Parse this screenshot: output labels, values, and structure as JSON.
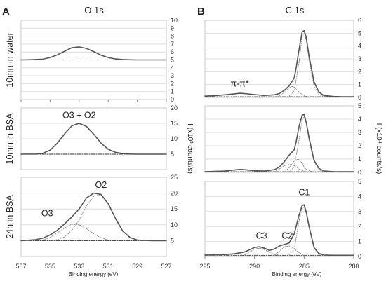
{
  "figure": {
    "panel_a_letter": "A",
    "panel_b_letter": "B",
    "panel_a_title": "O 1s",
    "panel_b_title": "C 1s",
    "xlabel": "Binding energy (eV)",
    "ylabel_a": "I (x10³ counts/s)",
    "ylabel_b": "I (x10⁴ counts/s)"
  },
  "chart_data": [
    {
      "type": "line",
      "panel": "A",
      "row_label": "10mn in water",
      "xlim": [
        537,
        527
      ],
      "ylim": [
        0,
        10
      ],
      "yticks": [
        0,
        1,
        2,
        3,
        4,
        5,
        6,
        7,
        8,
        9,
        10
      ],
      "grid": true,
      "annotations": [],
      "series": [
        {
          "role": "measured",
          "x": [
            537,
            536.5,
            536,
            535.5,
            535,
            534.5,
            534,
            533.5,
            533,
            532.5,
            532,
            531.5,
            531,
            530.5,
            530,
            529.5,
            529,
            528.5,
            528,
            527.5,
            527
          ],
          "y": [
            5.0,
            5.02,
            5.05,
            5.1,
            5.3,
            5.65,
            6.1,
            6.55,
            6.65,
            6.45,
            6.05,
            5.6,
            5.3,
            5.12,
            5.05,
            5.02,
            5.0,
            5.0,
            5.0,
            5.0,
            5.0
          ]
        },
        {
          "role": "background",
          "x": [
            537,
            527
          ],
          "y": [
            5.0,
            5.0
          ]
        }
      ]
    },
    {
      "type": "line",
      "panel": "A",
      "row_label": "10mn in BSA",
      "xlim": [
        537,
        527
      ],
      "ylim": [
        0,
        20
      ],
      "yticks": [
        5,
        10,
        15,
        20
      ],
      "grid": true,
      "annotations": [
        {
          "text": "O3 + O2",
          "x": 533,
          "y": 16.7
        }
      ],
      "series": [
        {
          "role": "measured",
          "x": [
            537,
            536,
            535.5,
            535,
            534.5,
            534,
            533.5,
            533,
            532.5,
            532,
            531.5,
            531,
            530.5,
            530,
            529.5,
            529,
            528,
            527
          ],
          "y": [
            5.0,
            5.05,
            5.3,
            6.3,
            8.6,
            11.6,
            14.2,
            15.0,
            14.0,
            11.5,
            8.6,
            6.6,
            5.6,
            5.2,
            5.05,
            5.0,
            5.0,
            5.0
          ]
        },
        {
          "role": "background",
          "x": [
            537,
            527
          ],
          "y": [
            5.0,
            5.0
          ]
        }
      ]
    },
    {
      "type": "line",
      "panel": "A",
      "row_label": "24h in BSA",
      "xlim": [
        537,
        527
      ],
      "ylim": [
        0,
        25
      ],
      "yticks": [
        5,
        10,
        15,
        20,
        25
      ],
      "grid": true,
      "annotations": [
        {
          "text": "O2",
          "x": 531.5,
          "y": 21.7
        },
        {
          "text": "O3",
          "x": 535.2,
          "y": 12.7
        }
      ],
      "series": [
        {
          "role": "measured",
          "x": [
            537,
            536,
            535.5,
            535,
            534.5,
            534,
            533.5,
            533,
            532.5,
            532,
            531.5,
            531,
            530.5,
            530,
            529.5,
            529,
            528,
            527
          ],
          "y": [
            5.0,
            5.3,
            5.8,
            6.8,
            8.3,
            10.3,
            12.5,
            15.0,
            18.5,
            20.0,
            19.6,
            16.7,
            12.0,
            8.0,
            6.0,
            5.2,
            5.0,
            5.0
          ]
        },
        {
          "role": "component",
          "name": "O2",
          "x": [
            535,
            534.5,
            534,
            533.5,
            533,
            532.5,
            532,
            531.5,
            531,
            530.5,
            530,
            529.5,
            529
          ],
          "y": [
            5.0,
            5.3,
            6.2,
            8.3,
            11.5,
            16.0,
            19.0,
            19.5,
            16.5,
            12.0,
            8.0,
            5.9,
            5.1
          ]
        },
        {
          "role": "component",
          "name": "O3",
          "x": [
            535.5,
            535,
            534.5,
            534,
            533.5,
            533,
            532.5,
            532,
            531.5,
            531
          ],
          "y": [
            5.2,
            6.0,
            7.5,
            9.0,
            10.2,
            10.0,
            8.8,
            7.2,
            5.9,
            5.2
          ]
        },
        {
          "role": "background",
          "x": [
            537,
            527
          ],
          "y": [
            5.0,
            5.0
          ]
        }
      ]
    },
    {
      "type": "line",
      "panel": "B",
      "xlim": [
        295,
        280
      ],
      "ylim": [
        0,
        6
      ],
      "yticks": [
        0,
        1,
        2,
        3,
        4,
        5,
        6
      ],
      "grid": true,
      "annotations": [
        {
          "text": "π-π*",
          "x": 291.5,
          "y": 0.85
        }
      ],
      "series": [
        {
          "role": "measured",
          "x": [
            295,
            294,
            293,
            292,
            291.5,
            291,
            290,
            289,
            288,
            287.5,
            287,
            286.5,
            286,
            285.8,
            285.5,
            285.2,
            285,
            284.8,
            284.5,
            284,
            283.5,
            283,
            282,
            281,
            280
          ],
          "y": [
            0.1,
            0.13,
            0.2,
            0.28,
            0.32,
            0.3,
            0.22,
            0.15,
            0.2,
            0.3,
            0.55,
            0.9,
            1.5,
            2.3,
            3.8,
            5.1,
            5.2,
            4.7,
            3.2,
            1.2,
            0.4,
            0.15,
            0.07,
            0.05,
            0.05
          ]
        },
        {
          "role": "component",
          "x": [
            287.5,
            287,
            286.5,
            286.2,
            286,
            285.5,
            285,
            284.5
          ],
          "y": [
            0.1,
            0.4,
            0.75,
            0.85,
            0.8,
            0.4,
            0.12,
            0.05
          ]
        },
        {
          "role": "component",
          "x": [
            286.5,
            286,
            285.5,
            285.2,
            285,
            284.8,
            284.5,
            284,
            283.5,
            283
          ],
          "y": [
            0.1,
            0.5,
            2.8,
            4.8,
            5.0,
            4.5,
            2.9,
            0.9,
            0.2,
            0.08
          ]
        },
        {
          "role": "background",
          "x": [
            295,
            280
          ],
          "y": [
            0.05,
            0.05
          ]
        }
      ]
    },
    {
      "type": "line",
      "panel": "B",
      "xlim": [
        295,
        280
      ],
      "ylim": [
        0,
        5
      ],
      "yticks": [
        0,
        1,
        2,
        3,
        4,
        5
      ],
      "grid": true,
      "annotations": [],
      "series": [
        {
          "role": "measured",
          "x": [
            295,
            293,
            292,
            291.5,
            291,
            290,
            289,
            288,
            287.5,
            287,
            286.5,
            286,
            285.8,
            285.5,
            285.2,
            285,
            284.8,
            284.5,
            284,
            283.5,
            283,
            282,
            280
          ],
          "y": [
            0.05,
            0.1,
            0.18,
            0.22,
            0.2,
            0.12,
            0.1,
            0.2,
            0.4,
            0.8,
            1.3,
            1.7,
            2.3,
            3.5,
            4.3,
            4.35,
            3.8,
            2.6,
            0.9,
            0.3,
            0.1,
            0.05,
            0.05
          ]
        },
        {
          "role": "component",
          "x": [
            288,
            287.5,
            287,
            286.5,
            286,
            285.5,
            285
          ],
          "y": [
            0.05,
            0.25,
            0.5,
            0.6,
            0.5,
            0.25,
            0.08
          ]
        },
        {
          "role": "component",
          "x": [
            287,
            286.5,
            286,
            285.6,
            285.2,
            285,
            284.8,
            284.4,
            284,
            283.5
          ],
          "y": [
            0.05,
            0.35,
            0.85,
            1.0,
            0.7,
            0.4,
            0.25,
            0.1,
            0.05,
            0.03
          ]
        },
        {
          "role": "component",
          "x": [
            286.5,
            286,
            285.5,
            285.2,
            285,
            284.8,
            284.5,
            284,
            283.5,
            283
          ],
          "y": [
            0.05,
            0.4,
            2.5,
            4.0,
            4.2,
            3.7,
            2.4,
            0.8,
            0.2,
            0.05
          ]
        },
        {
          "role": "background",
          "x": [
            295,
            280
          ],
          "y": [
            0.05,
            0.05
          ]
        }
      ]
    },
    {
      "type": "line",
      "panel": "B",
      "xlim": [
        295,
        280
      ],
      "ylim": [
        0,
        5
      ],
      "yticks": [
        0,
        1,
        2,
        3,
        4,
        5
      ],
      "grid": true,
      "annotations": [
        {
          "text": "C1",
          "x": 285,
          "y": 4.1
        },
        {
          "text": "C3",
          "x": 289.3,
          "y": 1.2
        },
        {
          "text": "C2",
          "x": 286.7,
          "y": 1.2
        }
      ],
      "series": [
        {
          "role": "measured",
          "x": [
            295,
            293,
            292,
            291,
            290.5,
            290,
            289.5,
            289,
            288.5,
            288,
            287.5,
            287,
            286.5,
            286,
            285.5,
            285.2,
            285,
            284.8,
            284.5,
            284,
            283.5,
            283,
            282,
            280
          ],
          "y": [
            0.1,
            0.12,
            0.18,
            0.3,
            0.45,
            0.6,
            0.65,
            0.55,
            0.4,
            0.5,
            0.7,
            0.8,
            0.9,
            1.5,
            2.8,
            3.4,
            3.45,
            3.0,
            2.0,
            0.6,
            0.2,
            0.1,
            0.08,
            0.08
          ]
        },
        {
          "role": "component",
          "name": "C3",
          "x": [
            291,
            290.5,
            290,
            289.5,
            289,
            288.5,
            288,
            287.5
          ],
          "y": [
            0.1,
            0.3,
            0.5,
            0.55,
            0.45,
            0.3,
            0.15,
            0.08
          ]
        },
        {
          "role": "component",
          "name": "C2",
          "x": [
            288,
            287.5,
            287,
            286.5,
            286,
            285.5,
            285
          ],
          "y": [
            0.08,
            0.35,
            0.65,
            0.7,
            0.5,
            0.25,
            0.08
          ]
        },
        {
          "role": "component",
          "name": "C1",
          "x": [
            286.5,
            286,
            285.5,
            285.2,
            285,
            284.8,
            284.5,
            284,
            283.5,
            283
          ],
          "y": [
            0.08,
            0.5,
            2.4,
            3.2,
            3.3,
            2.9,
            1.9,
            0.55,
            0.15,
            0.08
          ]
        },
        {
          "role": "background",
          "x": [
            295,
            280
          ],
          "y": [
            0.08,
            0.08
          ]
        }
      ]
    }
  ]
}
